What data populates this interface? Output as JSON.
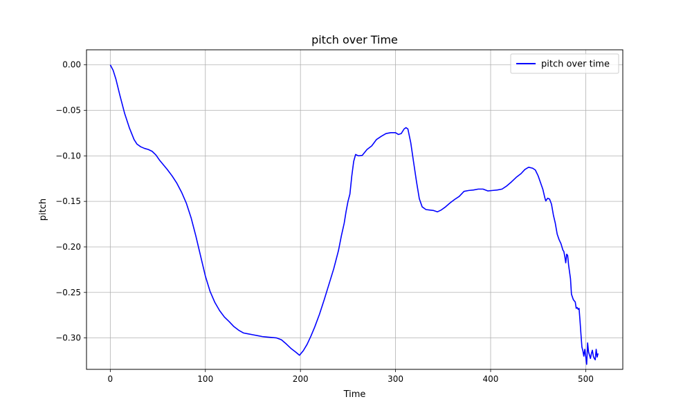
{
  "chart_data": {
    "type": "line",
    "title": "pitch over Time",
    "xlabel": "Time",
    "ylabel": "pitch",
    "xlim": [
      -25,
      539
    ],
    "ylim": [
      -0.3345,
      0.0165
    ],
    "xticks": [
      0,
      100,
      200,
      300,
      400,
      500
    ],
    "xtick_labels": [
      "0",
      "100",
      "200",
      "300",
      "400",
      "500"
    ],
    "yticks": [
      0.0,
      -0.05,
      -0.1,
      -0.15,
      -0.2,
      -0.25,
      -0.3
    ],
    "ytick_labels": [
      "0.00",
      "−0.05",
      "−0.10",
      "−0.15",
      "−0.20",
      "−0.25",
      "−0.30"
    ],
    "grid": true,
    "legend_position": "top-right",
    "series": [
      {
        "name": "pitch over time",
        "color": "#0000ff",
        "points": [
          [
            0,
            0.0
          ],
          [
            3,
            -0.006
          ],
          [
            6,
            -0.016
          ],
          [
            10,
            -0.033
          ],
          [
            15,
            -0.053
          ],
          [
            20,
            -0.069
          ],
          [
            25,
            -0.082
          ],
          [
            28,
            -0.087
          ],
          [
            32,
            -0.09
          ],
          [
            36,
            -0.0918
          ],
          [
            40,
            -0.093
          ],
          [
            44,
            -0.095
          ],
          [
            48,
            -0.099
          ],
          [
            52,
            -0.105
          ],
          [
            56,
            -0.11
          ],
          [
            60,
            -0.115
          ],
          [
            65,
            -0.122
          ],
          [
            70,
            -0.13
          ],
          [
            75,
            -0.14
          ],
          [
            80,
            -0.152
          ],
          [
            85,
            -0.168
          ],
          [
            90,
            -0.188
          ],
          [
            95,
            -0.21
          ],
          [
            100,
            -0.232
          ],
          [
            105,
            -0.249
          ],
          [
            110,
            -0.261
          ],
          [
            115,
            -0.27
          ],
          [
            120,
            -0.277
          ],
          [
            125,
            -0.282
          ],
          [
            130,
            -0.2875
          ],
          [
            135,
            -0.2915
          ],
          [
            140,
            -0.2945
          ],
          [
            145,
            -0.2955
          ],
          [
            150,
            -0.2965
          ],
          [
            155,
            -0.2975
          ],
          [
            160,
            -0.2985
          ],
          [
            165,
            -0.299
          ],
          [
            170,
            -0.2995
          ],
          [
            175,
            -0.3
          ],
          [
            180,
            -0.302
          ],
          [
            185,
            -0.3065
          ],
          [
            190,
            -0.3115
          ],
          [
            195,
            -0.3155
          ],
          [
            199,
            -0.319
          ],
          [
            203,
            -0.314
          ],
          [
            207,
            -0.307
          ],
          [
            211,
            -0.298
          ],
          [
            215,
            -0.288
          ],
          [
            220,
            -0.274
          ],
          [
            225,
            -0.258
          ],
          [
            230,
            -0.241
          ],
          [
            235,
            -0.224
          ],
          [
            240,
            -0.204
          ],
          [
            243,
            -0.188
          ],
          [
            246,
            -0.174
          ],
          [
            248,
            -0.161
          ],
          [
            250,
            -0.15
          ],
          [
            252,
            -0.142
          ],
          [
            254,
            -0.122
          ],
          [
            256,
            -0.106
          ],
          [
            258,
            -0.0985
          ],
          [
            261,
            -0.1
          ],
          [
            265,
            -0.0995
          ],
          [
            270,
            -0.093
          ],
          [
            275,
            -0.089
          ],
          [
            280,
            -0.082
          ],
          [
            285,
            -0.0785
          ],
          [
            290,
            -0.0755
          ],
          [
            295,
            -0.0745
          ],
          [
            300,
            -0.0745
          ],
          [
            303,
            -0.0765
          ],
          [
            306,
            -0.0755
          ],
          [
            309,
            -0.0705
          ],
          [
            311,
            -0.069
          ],
          [
            313,
            -0.0705
          ],
          [
            316,
            -0.0855
          ],
          [
            319,
            -0.107
          ],
          [
            322,
            -0.128
          ],
          [
            325,
            -0.147
          ],
          [
            328,
            -0.156
          ],
          [
            332,
            -0.159
          ],
          [
            336,
            -0.1595
          ],
          [
            340,
            -0.16
          ],
          [
            344,
            -0.1615
          ],
          [
            348,
            -0.1595
          ],
          [
            352,
            -0.1565
          ],
          [
            357,
            -0.152
          ],
          [
            362,
            -0.148
          ],
          [
            367,
            -0.1445
          ],
          [
            372,
            -0.139
          ],
          [
            377,
            -0.138
          ],
          [
            382,
            -0.1375
          ],
          [
            387,
            -0.1365
          ],
          [
            392,
            -0.1365
          ],
          [
            397,
            -0.1385
          ],
          [
            402,
            -0.138
          ],
          [
            407,
            -0.1375
          ],
          [
            412,
            -0.1365
          ],
          [
            417,
            -0.133
          ],
          [
            422,
            -0.1285
          ],
          [
            427,
            -0.1235
          ],
          [
            432,
            -0.1195
          ],
          [
            436,
            -0.115
          ],
          [
            440,
            -0.1125
          ],
          [
            444,
            -0.1135
          ],
          [
            447,
            -0.1155
          ],
          [
            450,
            -0.122
          ],
          [
            453,
            -0.131
          ],
          [
            455,
            -0.137
          ],
          [
            457,
            -0.146
          ],
          [
            458,
            -0.1495
          ],
          [
            460,
            -0.1465
          ],
          [
            462,
            -0.1475
          ],
          [
            464,
            -0.153
          ],
          [
            466,
            -0.165
          ],
          [
            468,
            -0.174
          ],
          [
            470,
            -0.186
          ],
          [
            472,
            -0.192
          ],
          [
            474,
            -0.1965
          ],
          [
            476,
            -0.2035
          ],
          [
            477,
            -0.205
          ],
          [
            478,
            -0.2105
          ],
          [
            479,
            -0.2175
          ],
          [
            480,
            -0.208
          ],
          [
            481,
            -0.2095
          ],
          [
            482,
            -0.22
          ],
          [
            484,
            -0.235
          ],
          [
            485,
            -0.252
          ],
          [
            487,
            -0.258
          ],
          [
            489,
            -0.2605
          ],
          [
            490,
            -0.2675
          ],
          [
            491,
            -0.2665
          ],
          [
            492,
            -0.2685
          ],
          [
            493,
            -0.2675
          ],
          [
            494,
            -0.281
          ],
          [
            495,
            -0.296
          ],
          [
            496,
            -0.31
          ],
          [
            497,
            -0.314
          ],
          [
            498,
            -0.32
          ],
          [
            499,
            -0.3125
          ],
          [
            500,
            -0.3205
          ],
          [
            501,
            -0.329
          ],
          [
            502,
            -0.3055
          ],
          [
            503,
            -0.3155
          ],
          [
            505,
            -0.3225
          ],
          [
            506,
            -0.317
          ],
          [
            507,
            -0.3135
          ],
          [
            508,
            -0.32
          ],
          [
            509,
            -0.3225
          ],
          [
            510,
            -0.324
          ],
          [
            511,
            -0.3125
          ],
          [
            512,
            -0.321
          ],
          [
            513,
            -0.317
          ]
        ]
      }
    ]
  }
}
